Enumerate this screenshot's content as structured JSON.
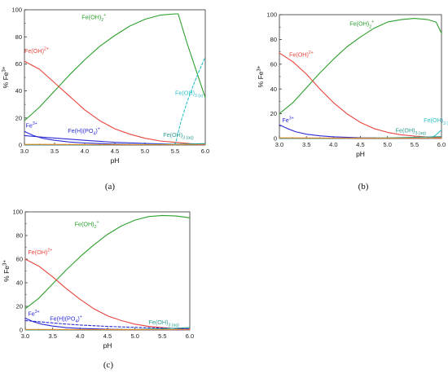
{
  "colors": {
    "green": "#2ca02c",
    "red": "#e8453c",
    "blue": "#2b2bd6",
    "cyan": "#2fc0c8",
    "teal": "#2a9d8f",
    "orange": "#e08a2a",
    "axis": "#333333"
  },
  "chart_data": [
    {
      "id": "a",
      "panel_label": "(a)",
      "type": "line",
      "xlabel": "pH",
      "ylabel": "% Fe",
      "ylabel_sup": "3+",
      "xlim": [
        3.0,
        6.0
      ],
      "ylim": [
        0,
        100
      ],
      "xticks": [
        "3.0",
        "3.5",
        "4.0",
        "4.5",
        "5.0",
        "5.5",
        "6.0"
      ],
      "yticks": [
        "0",
        "20",
        "40",
        "60",
        "80",
        "100"
      ],
      "series": [
        {
          "name": "Fe(OH)2+",
          "base": "Fe(OH)",
          "sub": "2",
          "sup": "+",
          "color": "green",
          "dash": false,
          "label_at": [
            3.95,
            93
          ],
          "points": [
            [
              3.0,
              18
            ],
            [
              3.25,
              28
            ],
            [
              3.5,
              40
            ],
            [
              3.75,
              52
            ],
            [
              4.0,
              63
            ],
            [
              4.25,
              73
            ],
            [
              4.5,
              81
            ],
            [
              4.75,
              88
            ],
            [
              5.0,
              93
            ],
            [
              5.25,
              96
            ],
            [
              5.5,
              97
            ],
            [
              5.55,
              97
            ],
            [
              5.7,
              75
            ],
            [
              5.85,
              55
            ],
            [
              6.0,
              35
            ]
          ]
        },
        {
          "name": "Fe(OH)2+",
          "base": "Fe(OH)",
          "sup": "2+",
          "color": "red",
          "dash": false,
          "label_at": [
            3.0,
            68
          ],
          "points": [
            [
              3.0,
              62
            ],
            [
              3.25,
              56
            ],
            [
              3.5,
              46
            ],
            [
              3.75,
              36
            ],
            [
              4.0,
              26
            ],
            [
              4.25,
              18
            ],
            [
              4.5,
              12
            ],
            [
              4.75,
              8
            ],
            [
              5.0,
              5
            ],
            [
              5.25,
              3
            ],
            [
              5.5,
              2
            ],
            [
              5.75,
              1
            ],
            [
              6.0,
              0.5
            ]
          ]
        },
        {
          "name": "Fe3+",
          "base": "Fe",
          "sup": "3+",
          "color": "blue",
          "dash": false,
          "label_at": [
            3.02,
            13
          ],
          "points": [
            [
              3.0,
              10
            ],
            [
              3.15,
              7
            ],
            [
              3.3,
              5
            ],
            [
              3.5,
              3.5
            ],
            [
              3.75,
              2.2
            ],
            [
              4.0,
              1.5
            ],
            [
              4.5,
              0.7
            ],
            [
              5.0,
              0.3
            ],
            [
              6.0,
              0.1
            ]
          ]
        },
        {
          "name": "Fe(H)(PO4)+",
          "base": "Fe(H)(PO",
          "sub": "4",
          "tail": ")",
          "sup": "+",
          "color": "blue",
          "dash": false,
          "label_at": [
            3.72,
            9
          ],
          "points": [
            [
              3.0,
              7
            ],
            [
              3.25,
              6
            ],
            [
              3.5,
              5.2
            ],
            [
              4.0,
              3.5
            ],
            [
              4.5,
              2
            ],
            [
              5.0,
              1.2
            ],
            [
              5.5,
              0.6
            ],
            [
              6.0,
              0.3
            ]
          ]
        },
        {
          "name": "Fe(OH)3(s)",
          "base": "Fe(OH)",
          "sub": "3 (s)",
          "color": "cyan",
          "dash": true,
          "label_at": [
            5.5,
            37
          ],
          "points": [
            [
              5.5,
              0
            ],
            [
              5.6,
              18
            ],
            [
              5.7,
              32
            ],
            [
              5.8,
              44
            ],
            [
              5.9,
              55
            ],
            [
              6.0,
              65
            ]
          ]
        },
        {
          "name": "Fe(OH)3(aq)",
          "base": "Fe(OH)",
          "sub": "3 (aq)",
          "color": "teal",
          "dash": false,
          "label_at": [
            5.3,
            6
          ],
          "points": [
            [
              3.0,
              0.1
            ],
            [
              4.0,
              0.2
            ],
            [
              5.0,
              0.4
            ],
            [
              5.5,
              0.6
            ],
            [
              6.0,
              1
            ]
          ]
        },
        {
          "name": "",
          "color": "orange",
          "dash": false,
          "points": [
            [
              3.0,
              0.5
            ],
            [
              4.0,
              0.4
            ],
            [
              5.0,
              0.3
            ],
            [
              6.0,
              0.2
            ]
          ]
        }
      ]
    },
    {
      "id": "b",
      "panel_label": "(b)",
      "type": "line",
      "xlabel": "pH",
      "ylabel": "% Fe",
      "ylabel_sup": "3+",
      "xlim": [
        3.0,
        6.0
      ],
      "ylim": [
        0,
        100
      ],
      "xticks": [
        "3.0",
        "3.5",
        "4.0",
        "4.5",
        "5.0",
        "5.5",
        "6.0"
      ],
      "yticks": [
        "0",
        "20",
        "40",
        "60",
        "80",
        "100"
      ],
      "series": [
        {
          "name": "Fe(OH)2+",
          "base": "Fe(OH)",
          "sub": "2",
          "sup": "+",
          "color": "green",
          "dash": false,
          "label_at": [
            4.3,
            91
          ],
          "points": [
            [
              3.0,
              20
            ],
            [
              3.25,
              29
            ],
            [
              3.5,
              41
            ],
            [
              3.75,
              53
            ],
            [
              4.0,
              64
            ],
            [
              4.25,
              74
            ],
            [
              4.5,
              82
            ],
            [
              4.75,
              89
            ],
            [
              5.0,
              94
            ],
            [
              5.25,
              96
            ],
            [
              5.5,
              97
            ],
            [
              5.75,
              96
            ],
            [
              5.9,
              94
            ],
            [
              6.0,
              85
            ]
          ]
        },
        {
          "name": "Fe(OH)2+",
          "base": "Fe(OH)",
          "sup": "2+",
          "color": "red",
          "dash": false,
          "label_at": [
            3.18,
            66
          ],
          "points": [
            [
              3.0,
              69
            ],
            [
              3.25,
              62
            ],
            [
              3.5,
              52
            ],
            [
              3.75,
              40
            ],
            [
              4.0,
              29
            ],
            [
              4.25,
              20
            ],
            [
              4.5,
              13
            ],
            [
              4.75,
              8
            ],
            [
              5.0,
              5
            ],
            [
              5.25,
              3
            ],
            [
              5.5,
              2
            ],
            [
              5.75,
              1.2
            ],
            [
              6.0,
              0.8
            ]
          ]
        },
        {
          "name": "Fe3+",
          "base": "Fe",
          "sup": "3+",
          "color": "blue",
          "dash": false,
          "label_at": [
            3.05,
            13
          ],
          "points": [
            [
              3.0,
              11
            ],
            [
              3.15,
              8
            ],
            [
              3.3,
              5.5
            ],
            [
              3.5,
              3.5
            ],
            [
              3.75,
              2.2
            ],
            [
              4.0,
              1.4
            ],
            [
              4.5,
              0.6
            ],
            [
              5.0,
              0.3
            ],
            [
              6.0,
              0.1
            ]
          ]
        },
        {
          "name": "Fe(OH)3(s)",
          "base": "Fe(OH)",
          "sub": "3 (s)",
          "color": "cyan",
          "dash": false,
          "label_at": [
            5.67,
            13
          ],
          "points": [
            [
              5.8,
              0
            ],
            [
              5.9,
              3
            ],
            [
              6.0,
              7
            ]
          ]
        },
        {
          "name": "Fe(OH)3(aq)",
          "base": "Fe(OH)",
          "sub": "3 (aq)",
          "color": "teal",
          "dash": false,
          "label_at": [
            5.15,
            5
          ],
          "points": [
            [
              3.0,
              0.1
            ],
            [
              4.0,
              0.2
            ],
            [
              5.0,
              0.5
            ],
            [
              5.5,
              1
            ],
            [
              6.0,
              1.5
            ]
          ]
        },
        {
          "name": "",
          "color": "orange",
          "dash": false,
          "points": [
            [
              3.0,
              0.5
            ],
            [
              4.0,
              0.4
            ],
            [
              5.0,
              0.3
            ],
            [
              6.0,
              0.2
            ]
          ]
        }
      ]
    },
    {
      "id": "c",
      "panel_label": "(c)",
      "type": "line",
      "xlabel": "pH",
      "ylabel": "% Fe",
      "ylabel_sup": "3+",
      "xlim": [
        3.0,
        6.0
      ],
      "ylim": [
        0,
        100
      ],
      "xticks": [
        "3.0",
        "3.5",
        "4.0",
        "4.5",
        "5.0",
        "5.5",
        "6.0"
      ],
      "yticks": [
        "0",
        "20",
        "40",
        "60",
        "80",
        "100"
      ],
      "series": [
        {
          "name": "Fe(OH)2+",
          "base": "Fe(OH)",
          "sub": "2",
          "sup": "+",
          "color": "green",
          "dash": false,
          "label_at": [
            3.9,
            88
          ],
          "points": [
            [
              3.0,
              18
            ],
            [
              3.25,
              27
            ],
            [
              3.5,
              39
            ],
            [
              3.75,
              51
            ],
            [
              4.0,
              62
            ],
            [
              4.25,
              72
            ],
            [
              4.5,
              81
            ],
            [
              4.75,
              88
            ],
            [
              5.0,
              93
            ],
            [
              5.25,
              96
            ],
            [
              5.5,
              97
            ],
            [
              5.75,
              96.5
            ],
            [
              6.0,
              95
            ]
          ]
        },
        {
          "name": "Fe(OH)2+",
          "base": "Fe(OH)",
          "sup": "2+",
          "color": "red",
          "dash": false,
          "label_at": [
            3.05,
            64
          ],
          "points": [
            [
              3.0,
              60
            ],
            [
              3.25,
              54
            ],
            [
              3.5,
              45
            ],
            [
              3.75,
              35
            ],
            [
              4.0,
              26
            ],
            [
              4.25,
              18
            ],
            [
              4.5,
              12
            ],
            [
              4.75,
              8
            ],
            [
              5.0,
              5
            ],
            [
              5.25,
              3
            ],
            [
              5.5,
              2
            ],
            [
              5.75,
              1.2
            ],
            [
              6.0,
              0.8
            ]
          ]
        },
        {
          "name": "Fe3+",
          "base": "Fe",
          "sup": "3+",
          "color": "blue",
          "dash": false,
          "label_at": [
            3.05,
            12
          ],
          "points": [
            [
              3.0,
              10
            ],
            [
              3.15,
              7
            ],
            [
              3.3,
              5
            ],
            [
              3.5,
              3.3
            ],
            [
              3.75,
              2
            ],
            [
              4.0,
              1.3
            ],
            [
              4.5,
              0.6
            ],
            [
              5.0,
              0.3
            ],
            [
              6.0,
              0.1
            ]
          ]
        },
        {
          "name": "Fe(H)(PO4)+",
          "base": "Fe(H)(PO",
          "sub": "4",
          "tail": ")",
          "sup": "+",
          "color": "blue",
          "dash": true,
          "label_at": [
            3.45,
            8
          ],
          "points": [
            [
              3.0,
              8
            ],
            [
              3.25,
              7
            ],
            [
              3.5,
              6
            ],
            [
              3.75,
              5
            ],
            [
              4.0,
              4.2
            ],
            [
              4.5,
              3
            ],
            [
              5.0,
              2.2
            ],
            [
              5.5,
              1.6
            ],
            [
              6.0,
              1
            ]
          ]
        },
        {
          "name": "Fe(OH)3(aq)",
          "base": "Fe(OH)",
          "sub": "3 (aq)",
          "color": "teal",
          "dash": false,
          "label_at": [
            5.25,
            5
          ],
          "points": [
            [
              3.0,
              0.1
            ],
            [
              4.0,
              0.2
            ],
            [
              5.0,
              0.5
            ],
            [
              5.5,
              1
            ],
            [
              6.0,
              2
            ]
          ]
        },
        {
          "name": "",
          "color": "orange",
          "dash": false,
          "points": [
            [
              3.0,
              0.5
            ],
            [
              4.0,
              0.4
            ],
            [
              5.0,
              0.3
            ],
            [
              6.0,
              0.2
            ]
          ]
        }
      ]
    }
  ]
}
